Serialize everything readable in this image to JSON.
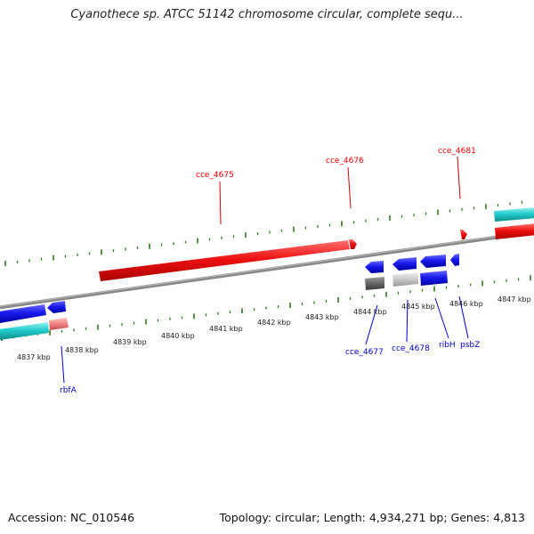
{
  "title": "Cyanothece sp. ATCC 51142 chromosome circular, complete sequ...",
  "footer": {
    "accession": "Accession: NC_010546",
    "summary": "Topology: circular; Length: 4,934,271 bp; Genes: 4,813"
  },
  "kbp_labels": [
    "4837 kbp",
    "4838 kbp",
    "4839 kbp",
    "4840 kbp",
    "4841 kbp",
    "4842 kbp",
    "4843 kbp",
    "4844 kbp",
    "4845 kbp",
    "4846 kbp",
    "4847 kbp"
  ],
  "gene_labels_top": [
    "cce_4675",
    "cce_4676",
    "cce_4681"
  ],
  "gene_labels_bottom": [
    "rbfA",
    "cce_4677",
    "cce_4678",
    "ribH",
    "psbZ"
  ],
  "colors": {
    "plus_strand_label": "#ee0000",
    "minus_strand_label": "#0000cc",
    "tick": "#2e7d1e",
    "backbone": "#888888",
    "gene_red": "#ee1111",
    "gene_blue": "#1a1aee",
    "gene_cyan": "#22cccc",
    "gene_pink": "#f08080",
    "gene_dark_gray": "#666666",
    "gene_light_gray": "#c8c8c8"
  }
}
